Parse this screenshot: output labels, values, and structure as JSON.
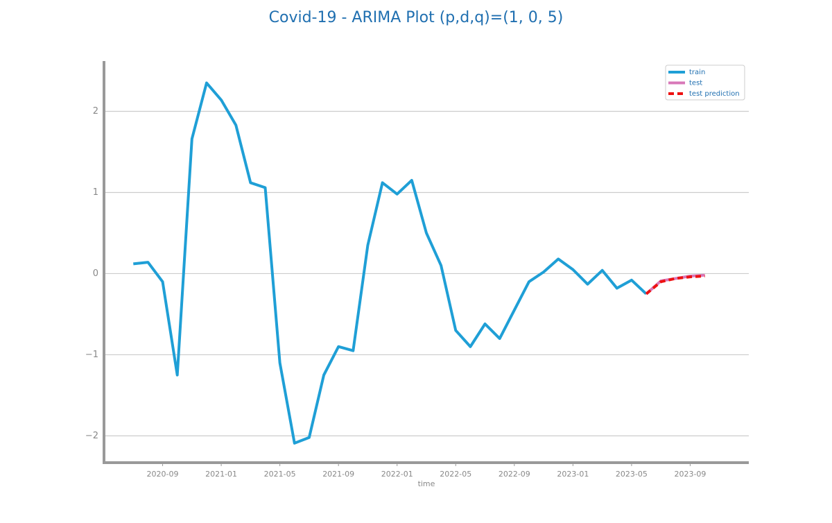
{
  "chart_data": {
    "type": "line",
    "title": "Covid-19 - ARIMA Plot (p,d,q)=(1, 0, 5)",
    "xlabel": "time",
    "x": [
      "2020-07",
      "2020-08",
      "2020-09",
      "2020-10",
      "2020-11",
      "2020-12",
      "2021-01",
      "2021-02",
      "2021-03",
      "2021-04",
      "2021-05",
      "2021-06",
      "2021-07",
      "2021-08",
      "2021-09",
      "2021-10",
      "2021-11",
      "2021-12",
      "2022-01",
      "2022-02",
      "2022-03",
      "2022-04",
      "2022-05",
      "2022-06",
      "2022-07",
      "2022-08",
      "2022-09",
      "2022-10",
      "2022-11",
      "2022-12",
      "2023-01",
      "2023-02",
      "2023-03",
      "2023-04",
      "2023-05",
      "2023-06",
      "2023-07",
      "2023-08",
      "2023-09",
      "2023-10"
    ],
    "series": [
      {
        "name": "train",
        "color": "#1f9fd6",
        "dash": false,
        "values": [
          0.12,
          0.14,
          -0.1,
          -1.25,
          1.66,
          2.35,
          2.14,
          1.83,
          1.12,
          1.06,
          -1.1,
          -2.09,
          -2.02,
          -1.25,
          -0.9,
          -0.95,
          0.35,
          1.12,
          0.98,
          1.15,
          0.5,
          0.1,
          -0.7,
          -0.9,
          -0.62,
          -0.8,
          -0.45,
          -0.1,
          0.02,
          0.18,
          0.05,
          -0.13,
          0.04,
          -0.18,
          -0.08,
          -0.25,
          null,
          null,
          null,
          null
        ]
      },
      {
        "name": "test",
        "color": "#d878b8",
        "dash": false,
        "values": [
          null,
          null,
          null,
          null,
          null,
          null,
          null,
          null,
          null,
          null,
          null,
          null,
          null,
          null,
          null,
          null,
          null,
          null,
          null,
          null,
          null,
          null,
          null,
          null,
          null,
          null,
          null,
          null,
          null,
          null,
          null,
          null,
          null,
          null,
          null,
          -0.25,
          -0.09,
          -0.06,
          -0.03,
          -0.02
        ]
      },
      {
        "name": "test prediction",
        "color": "#ee1111",
        "dash": true,
        "values": [
          null,
          null,
          null,
          null,
          null,
          null,
          null,
          null,
          null,
          null,
          null,
          null,
          null,
          null,
          null,
          null,
          null,
          null,
          null,
          null,
          null,
          null,
          null,
          null,
          null,
          null,
          null,
          null,
          null,
          null,
          null,
          null,
          null,
          null,
          null,
          -0.25,
          -0.1,
          -0.06,
          -0.04,
          -0.03
        ]
      }
    ],
    "xlim": [
      "2020-05",
      "2024-01"
    ],
    "xticks": [
      "2020-09",
      "2021-01",
      "2021-05",
      "2021-09",
      "2022-01",
      "2022-05",
      "2022-09",
      "2023-01",
      "2023-05",
      "2023-09"
    ],
    "ylim": [
      -2.33,
      2.62
    ],
    "yticks": [
      {
        "value": -2,
        "label": "−2"
      },
      {
        "value": -1,
        "label": "−1"
      },
      0,
      1,
      2
    ],
    "grid": true,
    "legend": "upper-right"
  }
}
